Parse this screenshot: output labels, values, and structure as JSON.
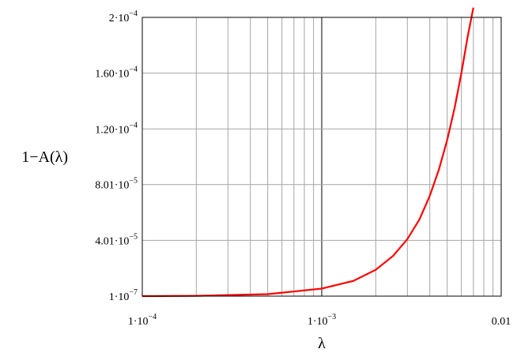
{
  "chart_data": {
    "type": "line",
    "xscale": "log",
    "xlim": [
      0.0001,
      0.01
    ],
    "ylim": [
      1e-07,
      0.0002
    ],
    "xlabel": "λ",
    "ylabel": "1−A(λ)",
    "grid": true,
    "x_ticks": [
      {
        "value": 0.0001,
        "mantissa": "1·10",
        "exp": "−4"
      },
      {
        "value": 0.001,
        "mantissa": "1·10",
        "exp": "−3"
      },
      {
        "value": 0.01,
        "mantissa": "0.01",
        "exp": ""
      }
    ],
    "y_ticks": [
      {
        "value": 1e-07,
        "mantissa": "1·10",
        "exp": "−7"
      },
      {
        "value": 4.01e-05,
        "mantissa": "4.01·10",
        "exp": "−5"
      },
      {
        "value": 8.01e-05,
        "mantissa": "8.01·10",
        "exp": "−5"
      },
      {
        "value": 0.00012,
        "mantissa": "1.20·10",
        "exp": "−4"
      },
      {
        "value": 0.00016,
        "mantissa": "1.60·10",
        "exp": "−4"
      },
      {
        "value": 0.0002,
        "mantissa": "2·10",
        "exp": "−4"
      }
    ],
    "series": [
      {
        "color": "#ff0000",
        "x": [
          0.0001,
          0.0002,
          0.0005,
          0.001,
          0.0015,
          0.002,
          0.0025,
          0.003,
          0.0035,
          0.004,
          0.0045,
          0.005,
          0.0055,
          0.006,
          0.0065,
          0.007
        ],
        "y": [
          1e-07,
          3e-07,
          1.5e-06,
          5.5e-06,
          1.1e-05,
          1.9e-05,
          2.9e-05,
          4.1e-05,
          5.5e-05,
          7.2e-05,
          9.1e-05,
          0.000112,
          0.000135,
          0.00016,
          0.000186,
          0.000207
        ]
      }
    ]
  }
}
